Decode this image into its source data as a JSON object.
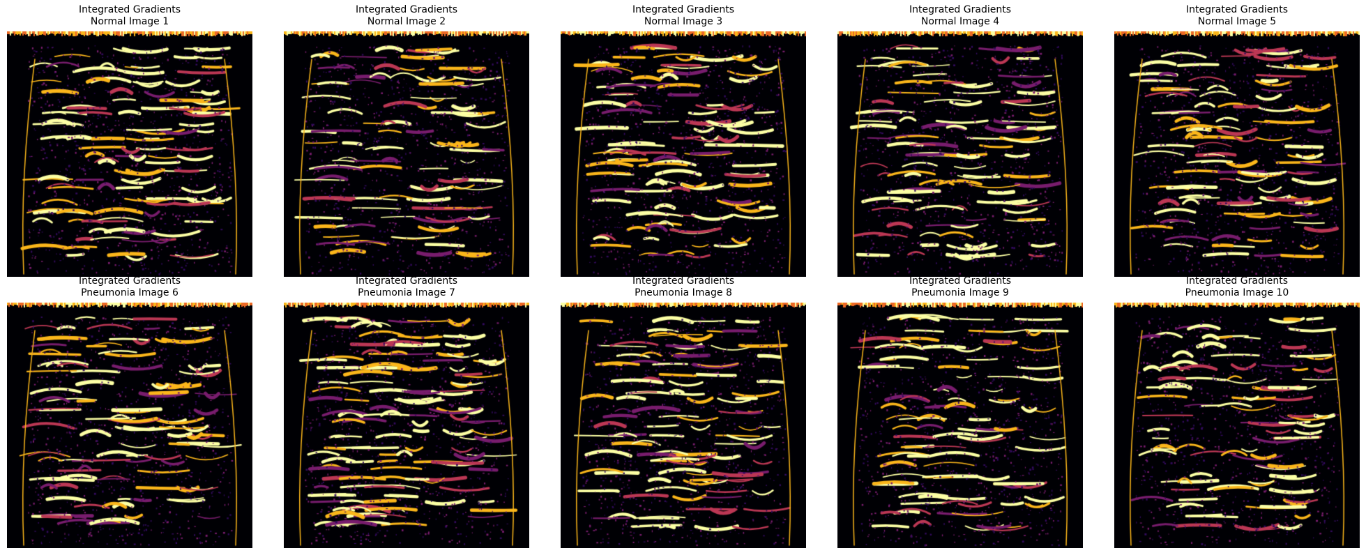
{
  "figure": {
    "colormap": [
      "#000004",
      "#320a5e",
      "#781c6d",
      "#bc3754",
      "#ed6925",
      "#fbb61a",
      "#fcffa4"
    ],
    "panels": [
      {
        "title_line1": "Integrated Gradients",
        "title_line2": "Normal Image 1"
      },
      {
        "title_line1": "Integrated Gradients",
        "title_line2": "Normal Image 2"
      },
      {
        "title_line1": "Integrated Gradients",
        "title_line2": "Normal Image 3"
      },
      {
        "title_line1": "Integrated Gradients",
        "title_line2": "Normal Image 4"
      },
      {
        "title_line1": "Integrated Gradients",
        "title_line2": "Normal Image 5"
      },
      {
        "title_line1": "Integrated Gradients",
        "title_line2": "Pneumonia Image 6"
      },
      {
        "title_line1": "Integrated Gradients",
        "title_line2": "Pneumonia Image 7"
      },
      {
        "title_line1": "Integrated Gradients",
        "title_line2": "Pneumonia Image 8"
      },
      {
        "title_line1": "Integrated Gradients",
        "title_line2": "Pneumonia Image 9"
      },
      {
        "title_line1": "Integrated Gradients",
        "title_line2": "Pneumonia Image 10"
      }
    ]
  }
}
